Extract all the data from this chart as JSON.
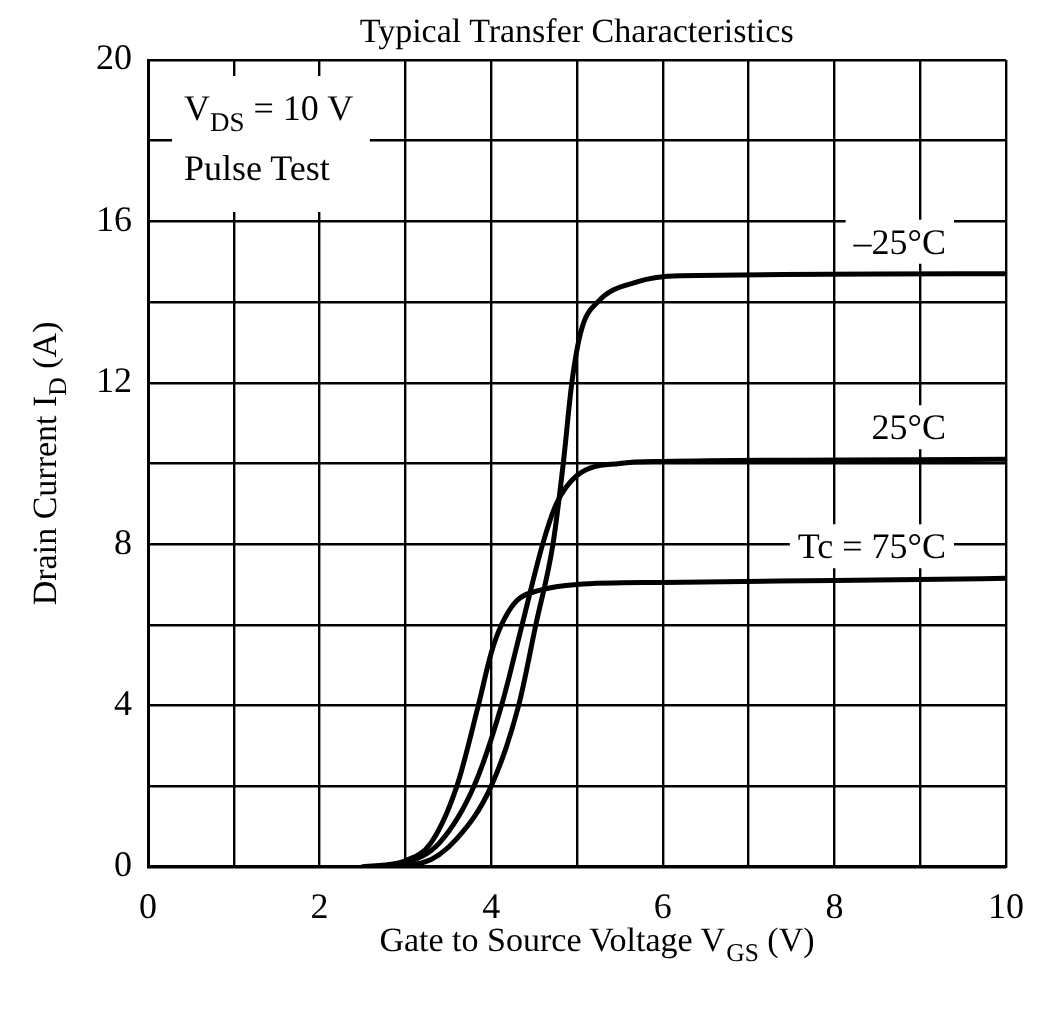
{
  "chart_data": {
    "type": "line",
    "title": "Typical Transfer Characteristics",
    "xlabel": "Gate to Source Voltage V$_{GS}$ (V)",
    "ylabel": "Drain Current I$_{D}$ (A)",
    "annotations": [
      "V$_{DS}$ = 10 V",
      "Pulse Test"
    ],
    "xlim": [
      0,
      10
    ],
    "xticks": [
      0,
      {
        "value": 1,
        "label": null
      },
      2,
      {
        "value": 3,
        "label": null
      },
      4,
      {
        "value": 5,
        "label": null
      },
      6,
      {
        "value": 7,
        "label": null
      },
      8,
      {
        "value": 9,
        "label": null
      },
      10
    ],
    "ylim": [
      0,
      20
    ],
    "yticks": [
      0,
      {
        "value": 2,
        "label": null
      },
      4,
      {
        "value": 6,
        "label": null
      },
      8,
      {
        "value": 10,
        "label": null
      },
      12,
      {
        "value": 14,
        "label": null
      },
      16,
      {
        "value": 18,
        "label": null
      },
      20
    ],
    "grid": true,
    "legend": false,
    "marker": "none",
    "line_style": "solid",
    "series": [
      {
        "name": "–25°C",
        "color": "#000000",
        "x": [
          2.7,
          3.2,
          3.6,
          4.0,
          4.32,
          4.52,
          4.72,
          4.84,
          4.94,
          5.05,
          5.24,
          5.7,
          6.2,
          10
        ],
        "values": [
          0,
          0.1,
          0.7,
          2,
          4,
          6,
          8,
          10,
          12,
          13.3,
          14,
          14.5,
          14.65,
          14.7
        ]
      },
      {
        "name": "25°C",
        "color": "#000000",
        "x": [
          2.6,
          3,
          3.4,
          3.8,
          4.12,
          4.36,
          4.6,
          4.76,
          5,
          5.5,
          6,
          10
        ],
        "values": [
          0,
          0.1,
          0.6,
          2,
          4,
          6,
          8,
          9,
          9.7,
          10,
          10.05,
          10.1
        ]
      },
      {
        "name": "Tc = 75°C",
        "color": "#000000",
        "x": [
          2.5,
          3,
          3.3,
          3.6,
          3.85,
          4.0,
          4.12,
          4.3,
          4.56,
          5,
          6,
          8,
          10
        ],
        "values": [
          0,
          0.15,
          0.6,
          2,
          4,
          5.3,
          6,
          6.6,
          6.85,
          7,
          7.05,
          7.1,
          7.15
        ]
      }
    ]
  }
}
